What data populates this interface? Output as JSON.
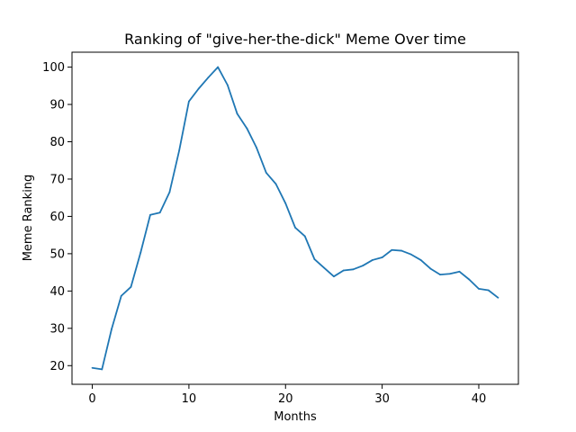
{
  "chart_data": {
    "type": "line",
    "title": "Ranking of \"give-her-the-dick\" Meme Over time",
    "xlabel": "Months",
    "ylabel": "Meme Ranking",
    "xlim": [
      -2.1,
      44.1
    ],
    "ylim": [
      15.0,
      104.0
    ],
    "xticks": [
      0,
      10,
      20,
      30,
      40
    ],
    "yticks": [
      20,
      30,
      40,
      50,
      60,
      70,
      80,
      90,
      100
    ],
    "grid": false,
    "series": [
      {
        "color": "#1f77b4",
        "x": [
          0,
          1,
          2,
          3,
          4,
          5,
          6,
          7,
          8,
          9,
          10,
          11,
          12,
          13,
          14,
          15,
          16,
          17,
          18,
          19,
          20,
          21,
          22,
          23,
          24,
          25,
          26,
          27,
          28,
          29,
          30,
          31,
          32,
          33,
          34,
          35,
          36,
          37,
          38,
          39,
          40,
          41,
          42
        ],
        "y": [
          19.4,
          19.0,
          29.8,
          38.7,
          41.1,
          50.3,
          60.4,
          61.0,
          66.5,
          77.7,
          90.8,
          94.2,
          97.2,
          100.0,
          95.2,
          87.5,
          83.6,
          78.4,
          71.7,
          68.7,
          63.5,
          57.0,
          54.7,
          48.5,
          46.2,
          43.9,
          45.5,
          45.8,
          46.8,
          48.3,
          49.0,
          51.0,
          50.8,
          49.8,
          48.3,
          46.0,
          44.4,
          44.6,
          45.2,
          43.1,
          40.6,
          40.2,
          38.2
        ]
      }
    ]
  }
}
